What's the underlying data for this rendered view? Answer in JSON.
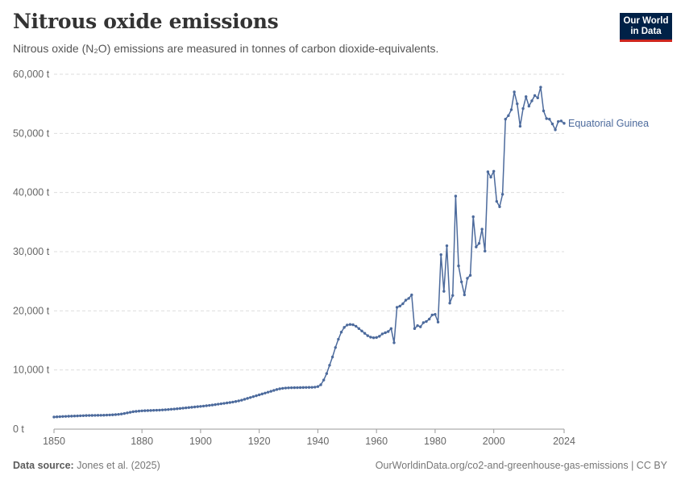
{
  "header": {
    "title": "Nitrous oxide emissions",
    "subtitle": "Nitrous oxide (N₂O) emissions are measured in tonnes of carbon dioxide-equivalents."
  },
  "logo": {
    "line1": "Our World",
    "line2": "in Data"
  },
  "footer": {
    "source_label": "Data source:",
    "source_text": "Jones et al. (2025)",
    "url_text": "OurWorldinData.org/co2-and-greenhouse-gas-emissions | CC BY"
  },
  "colors": {
    "series": "#4c6a9c",
    "grid": "#dddddd",
    "logo_bg": "#002147",
    "logo_accent": "#ce261e"
  },
  "chart_data": {
    "type": "line",
    "title": "Nitrous oxide emissions",
    "subtitle": "Nitrous oxide (N₂O) emissions are measured in tonnes of carbon dioxide-equivalents.",
    "xlabel": "",
    "ylabel": "",
    "xlim": [
      1850,
      2024
    ],
    "ylim": [
      0,
      60000
    ],
    "x_ticks": [
      1850,
      1880,
      1900,
      1920,
      1940,
      1960,
      1980,
      2000,
      2024
    ],
    "y_ticks": [
      0,
      10000,
      20000,
      30000,
      40000,
      50000,
      60000
    ],
    "y_tick_labels": [
      "0 t",
      "10,000 t",
      "20,000 t",
      "30,000 t",
      "40,000 t",
      "50,000 t",
      "60,000 t"
    ],
    "grid": "horizontal dashed",
    "legend": "inline label at line end",
    "series": [
      {
        "name": "Equatorial Guinea",
        "color": "#4c6a9c",
        "points": [
          [
            1850,
            2050
          ],
          [
            1851,
            2080
          ],
          [
            1852,
            2110
          ],
          [
            1853,
            2140
          ],
          [
            1854,
            2160
          ],
          [
            1855,
            2180
          ],
          [
            1856,
            2200
          ],
          [
            1857,
            2220
          ],
          [
            1858,
            2240
          ],
          [
            1859,
            2260
          ],
          [
            1860,
            2280
          ],
          [
            1861,
            2300
          ],
          [
            1862,
            2310
          ],
          [
            1863,
            2320
          ],
          [
            1864,
            2330
          ],
          [
            1865,
            2340
          ],
          [
            1866,
            2350
          ],
          [
            1867,
            2360
          ],
          [
            1868,
            2380
          ],
          [
            1869,
            2400
          ],
          [
            1870,
            2420
          ],
          [
            1871,
            2460
          ],
          [
            1872,
            2500
          ],
          [
            1873,
            2560
          ],
          [
            1874,
            2650
          ],
          [
            1875,
            2750
          ],
          [
            1876,
            2850
          ],
          [
            1877,
            2950
          ],
          [
            1878,
            3000
          ],
          [
            1879,
            3050
          ],
          [
            1880,
            3100
          ],
          [
            1881,
            3120
          ],
          [
            1882,
            3140
          ],
          [
            1883,
            3160
          ],
          [
            1884,
            3180
          ],
          [
            1885,
            3200
          ],
          [
            1886,
            3220
          ],
          [
            1887,
            3250
          ],
          [
            1888,
            3280
          ],
          [
            1889,
            3320
          ],
          [
            1890,
            3360
          ],
          [
            1891,
            3400
          ],
          [
            1892,
            3450
          ],
          [
            1893,
            3500
          ],
          [
            1894,
            3550
          ],
          [
            1895,
            3600
          ],
          [
            1896,
            3650
          ],
          [
            1897,
            3700
          ],
          [
            1898,
            3750
          ],
          [
            1899,
            3800
          ],
          [
            1900,
            3850
          ],
          [
            1901,
            3900
          ],
          [
            1902,
            3960
          ],
          [
            1903,
            4020
          ],
          [
            1904,
            4080
          ],
          [
            1905,
            4150
          ],
          [
            1906,
            4220
          ],
          [
            1907,
            4290
          ],
          [
            1908,
            4360
          ],
          [
            1909,
            4430
          ],
          [
            1910,
            4500
          ],
          [
            1911,
            4580
          ],
          [
            1912,
            4670
          ],
          [
            1913,
            4780
          ],
          [
            1914,
            4900
          ],
          [
            1915,
            5050
          ],
          [
            1916,
            5200
          ],
          [
            1917,
            5350
          ],
          [
            1918,
            5500
          ],
          [
            1919,
            5650
          ],
          [
            1920,
            5800
          ],
          [
            1921,
            5950
          ],
          [
            1922,
            6100
          ],
          [
            1923,
            6250
          ],
          [
            1924,
            6400
          ],
          [
            1925,
            6550
          ],
          [
            1926,
            6700
          ],
          [
            1927,
            6820
          ],
          [
            1928,
            6900
          ],
          [
            1929,
            6950
          ],
          [
            1930,
            6980
          ],
          [
            1931,
            7000
          ],
          [
            1932,
            7010
          ],
          [
            1933,
            7020
          ],
          [
            1934,
            7030
          ],
          [
            1935,
            7040
          ],
          [
            1936,
            7050
          ],
          [
            1937,
            7060
          ],
          [
            1938,
            7070
          ],
          [
            1939,
            7100
          ],
          [
            1940,
            7200
          ],
          [
            1941,
            7500
          ],
          [
            1942,
            8300
          ],
          [
            1943,
            9400
          ],
          [
            1944,
            10800
          ],
          [
            1945,
            12200
          ],
          [
            1946,
            13800
          ],
          [
            1947,
            15200
          ],
          [
            1948,
            16400
          ],
          [
            1949,
            17200
          ],
          [
            1950,
            17600
          ],
          [
            1951,
            17700
          ],
          [
            1952,
            17650
          ],
          [
            1953,
            17400
          ],
          [
            1954,
            17000
          ],
          [
            1955,
            16600
          ],
          [
            1956,
            16200
          ],
          [
            1957,
            15800
          ],
          [
            1958,
            15550
          ],
          [
            1959,
            15450
          ],
          [
            1960,
            15500
          ],
          [
            1961,
            15700
          ],
          [
            1962,
            16100
          ],
          [
            1963,
            16300
          ],
          [
            1964,
            16500
          ],
          [
            1965,
            17000
          ],
          [
            1966,
            14600
          ],
          [
            1967,
            20600
          ],
          [
            1968,
            20800
          ],
          [
            1969,
            21200
          ],
          [
            1970,
            21800
          ],
          [
            1971,
            22100
          ],
          [
            1972,
            22700
          ],
          [
            1973,
            17000
          ],
          [
            1974,
            17500
          ],
          [
            1975,
            17300
          ],
          [
            1976,
            18000
          ],
          [
            1977,
            18200
          ],
          [
            1978,
            18600
          ],
          [
            1979,
            19300
          ],
          [
            1980,
            19400
          ],
          [
            1981,
            18100
          ],
          [
            1982,
            29500
          ],
          [
            1983,
            23300
          ],
          [
            1984,
            31000
          ],
          [
            1985,
            21300
          ],
          [
            1986,
            22600
          ],
          [
            1987,
            39400
          ],
          [
            1988,
            27600
          ],
          [
            1989,
            24900
          ],
          [
            1990,
            22700
          ],
          [
            1991,
            25500
          ],
          [
            1992,
            26000
          ],
          [
            1993,
            35900
          ],
          [
            1994,
            30800
          ],
          [
            1995,
            31400
          ],
          [
            1996,
            33800
          ],
          [
            1997,
            30100
          ],
          [
            1998,
            43500
          ],
          [
            1999,
            42600
          ],
          [
            2000,
            43600
          ],
          [
            2001,
            38500
          ],
          [
            2002,
            37600
          ],
          [
            2003,
            39700
          ],
          [
            2004,
            52400
          ],
          [
            2005,
            53000
          ],
          [
            2006,
            54000
          ],
          [
            2007,
            57000
          ],
          [
            2008,
            55000
          ],
          [
            2009,
            51200
          ],
          [
            2010,
            54200
          ],
          [
            2011,
            56200
          ],
          [
            2012,
            54600
          ],
          [
            2013,
            55500
          ],
          [
            2014,
            56400
          ],
          [
            2015,
            56000
          ],
          [
            2016,
            57800
          ],
          [
            2017,
            53800
          ],
          [
            2018,
            52500
          ],
          [
            2019,
            52400
          ],
          [
            2020,
            51600
          ],
          [
            2021,
            50600
          ],
          [
            2022,
            52000
          ],
          [
            2023,
            52100
          ],
          [
            2024,
            51700
          ]
        ]
      }
    ]
  }
}
